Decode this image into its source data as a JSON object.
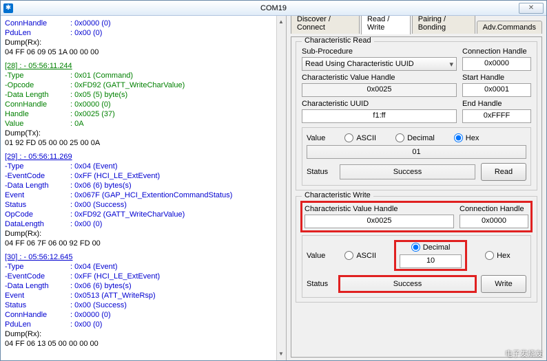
{
  "window": {
    "title": "COM19"
  },
  "log": {
    "block0": {
      "lines": [
        {
          "k": "ConnHandle",
          "v": ": 0x0000 (0)",
          "cls": "blue"
        },
        {
          "k": "PduLen",
          "v": ": 0x00 (0)",
          "cls": "blue"
        }
      ],
      "dumpLabel": "Dump(Rx):",
      "dump": "04 FF 06 09 05 1A 00 00 00"
    },
    "block1": {
      "header": "[28] : <Tx> - 05:56:11.244",
      "lines": [
        {
          "k": "-Type",
          "v": ": 0x01 (Command)"
        },
        {
          "k": "-Opcode",
          "v": ": 0xFD92 (GATT_WriteCharValue)"
        },
        {
          "k": "-Data Length",
          "v": ": 0x05 (5) byte(s)"
        },
        {
          "k": " ConnHandle",
          "v": ": 0x0000 (0)"
        },
        {
          "k": " Handle",
          "v": ": 0x0025 (37)"
        },
        {
          "k": " Value",
          "v": ": 0A"
        }
      ],
      "dumpLabel": "Dump(Tx):",
      "dump": "01 92 FD 05 00 00 25 00 0A"
    },
    "block2": {
      "header": "[29] : <Rx> - 05:56:11.269",
      "lines": [
        {
          "k": "-Type",
          "v": ": 0x04 (Event)"
        },
        {
          "k": "-EventCode",
          "v": ": 0xFF (HCI_LE_ExtEvent)"
        },
        {
          "k": "-Data Length",
          "v": ": 0x06 (6) bytes(s)"
        },
        {
          "k": " Event",
          "v": ": 0x067F (GAP_HCI_ExtentionCommandStatus)"
        },
        {
          "k": " Status",
          "v": ": 0x00 (Success)"
        },
        {
          "k": " OpCode",
          "v": ": 0xFD92 (GATT_WriteCharValue)"
        },
        {
          "k": " DataLength",
          "v": ": 0x00 (0)"
        }
      ],
      "dumpLabel": "Dump(Rx):",
      "dump": "04 FF 06 7F 06 00 92 FD 00"
    },
    "block3": {
      "header": "[30] : <Rx> - 05:56:12.645",
      "lines": [
        {
          "k": "-Type",
          "v": ": 0x04 (Event)"
        },
        {
          "k": "-EventCode",
          "v": ": 0xFF (HCI_LE_ExtEvent)"
        },
        {
          "k": "-Data Length",
          "v": ": 0x06 (6) bytes(s)"
        },
        {
          "k": " Event",
          "v": ": 0x0513 (ATT_WriteRsp)"
        },
        {
          "k": " Status",
          "v": ": 0x00 (Success)"
        },
        {
          "k": " ConnHandle",
          "v": ": 0x0000 (0)"
        },
        {
          "k": " PduLen",
          "v": ": 0x00 (0)"
        }
      ],
      "dumpLabel": "Dump(Rx):",
      "dump": "04 FF 06 13 05 00 00 00 00"
    }
  },
  "tabs": {
    "t1": "Discover / Connect",
    "t2": "Read / Write",
    "t3": "Pairing / Bonding",
    "t4": "Adv.Commands"
  },
  "read": {
    "legend": "Characteristic Read",
    "subproc_label": "Sub-Procedure",
    "subproc_value": "Read Using Characteristic UUID",
    "connhandle_label": "Connection Handle",
    "connhandle_value": "0x0000",
    "cvh_label": "Characteristic Value Handle",
    "cvh_value": "0x0025",
    "starthandle_label": "Start Handle",
    "starthandle_value": "0x0001",
    "uuid_label": "Characteristic UUID",
    "uuid_value": "f1:ff",
    "endhandle_label": "End Handle",
    "endhandle_value": "0xFFFF",
    "value_label": "Value",
    "radio_ascii": "ASCII",
    "radio_decimal": "Decimal",
    "radio_hex": "Hex",
    "value_box": "01",
    "status_label": "Status",
    "status_value": "Success",
    "read_btn": "Read"
  },
  "write": {
    "legend": "Characteristic Write",
    "cvh_label": "Characteristic Value Handle",
    "cvh_value": "0x0025",
    "connhandle_label": "Connection Handle",
    "connhandle_value": "0x0000",
    "value_label": "Value",
    "radio_ascii": "ASCII",
    "radio_decimal": "Decimal",
    "radio_hex": "Hex",
    "value_box": "10",
    "status_label": "Status",
    "status_value": "Success",
    "write_btn": "Write"
  },
  "colors": {
    "blue": "#0000d0",
    "green": "#008000",
    "highlight": "#e02020"
  },
  "watermark": "电子发烧友"
}
